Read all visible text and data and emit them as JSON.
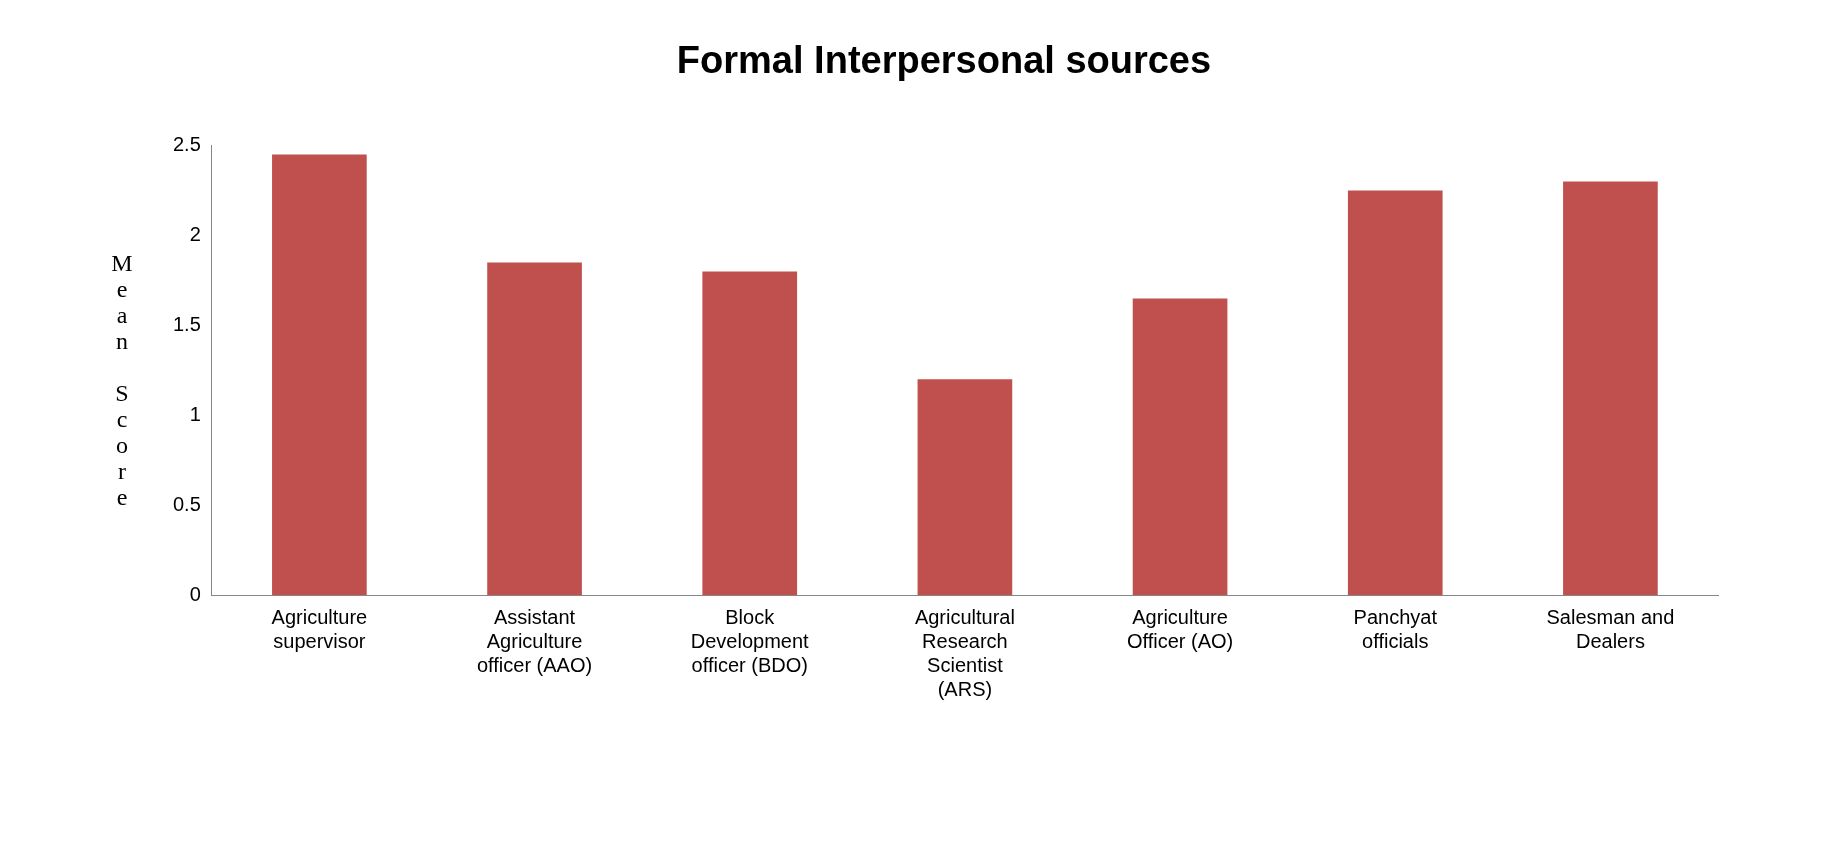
{
  "chart_data": {
    "type": "bar",
    "title": "Formal Interpersonal sources",
    "ylabel": "Mean Score",
    "categories": [
      "Agriculture supervisor",
      "Assistant Agriculture officer (AAO)",
      "Block Development officer (BDO)",
      "Agricultural Research Scientist (ARS)",
      "Agriculture Officer (AO)",
      "Panchyat officials",
      "Salesman and Dealers"
    ],
    "values": [
      2.45,
      1.85,
      1.8,
      1.2,
      1.65,
      2.25,
      2.3
    ],
    "color": "#c0504d",
    "ylim": [
      0,
      2.5
    ],
    "yticks": [
      0,
      0.5,
      1,
      1.5,
      2,
      2.5
    ],
    "grid": false,
    "legend": false
  }
}
